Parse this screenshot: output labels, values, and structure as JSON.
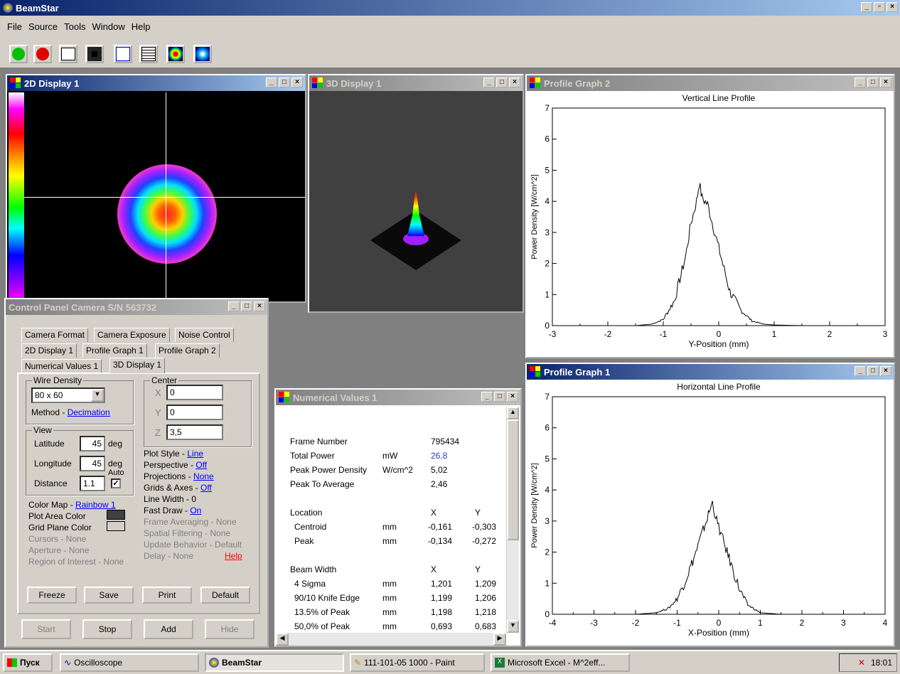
{
  "app": {
    "title": "BeamStar"
  },
  "menu": [
    "File",
    "Source",
    "Tools",
    "Window",
    "Help"
  ],
  "toolbar": {
    "icons": [
      "start-green-icon",
      "stop-red-icon",
      "profile-tool-icon",
      "2d-display-icon",
      "3d-display-icon",
      "numerical-values-icon",
      "color-map-icon",
      "beam-icon"
    ]
  },
  "win_2d": {
    "title": "2D Display 1"
  },
  "win_3d": {
    "title": "3D Display 1"
  },
  "win_pg2": {
    "title": "Profile Graph 2",
    "chart_title": "Vertical Line Profile",
    "xlabel": "Y-Position (mm)",
    "ylabel": "Power Density [W/cm^2]"
  },
  "win_pg1": {
    "title": "Profile Graph 1",
    "chart_title": "Horizontal Line Profile",
    "xlabel": "X-Position (mm)",
    "ylabel": "Power Density [W/cm^2]"
  },
  "chart_data": [
    {
      "type": "line",
      "title": "Vertical Line Profile",
      "xlabel": "Y-Position (mm)",
      "ylabel": "Power Density [W/cm^2]",
      "xlim": [
        -3,
        3
      ],
      "ylim": [
        0,
        7
      ],
      "xticks": [
        "-3",
        "-2",
        "-1",
        "0",
        "1",
        "2",
        "3"
      ],
      "yticks": [
        "0",
        "1",
        "2",
        "3",
        "4",
        "5",
        "6",
        "7"
      ],
      "x": [
        -2.4,
        -1.5,
        -1.2,
        -1.0,
        -0.8,
        -0.6,
        -0.5,
        -0.4,
        -0.35,
        -0.3,
        -0.2,
        -0.1,
        0.0,
        0.1,
        0.2,
        0.4,
        0.6,
        0.8,
        1.0,
        1.5,
        2.4
      ],
      "y": [
        0,
        0,
        0.05,
        0.2,
        0.8,
        2.2,
        3.3,
        4.0,
        4.6,
        4.1,
        3.9,
        3.2,
        2.5,
        1.8,
        1.1,
        0.5,
        0.15,
        0.05,
        0.02,
        0,
        0
      ]
    },
    {
      "type": "line",
      "title": "Horizontal Line Profile",
      "xlabel": "X-Position (mm)",
      "ylabel": "Power Density [W/cm^2]",
      "xlim": [
        -4,
        4
      ],
      "ylim": [
        0,
        7
      ],
      "xticks": [
        "-4",
        "-3",
        "-2",
        "-1",
        "0",
        "1",
        "2",
        "3",
        "4"
      ],
      "yticks": [
        "0",
        "1",
        "2",
        "3",
        "4",
        "5",
        "6",
        "7"
      ],
      "x": [
        -3.3,
        -2.0,
        -1.5,
        -1.2,
        -1.0,
        -0.8,
        -0.6,
        -0.4,
        -0.25,
        -0.15,
        -0.05,
        0.1,
        0.3,
        0.5,
        0.7,
        1.0,
        1.5,
        3.2
      ],
      "y": [
        0,
        0,
        0.05,
        0.2,
        0.5,
        1.1,
        1.8,
        2.6,
        3.2,
        3.6,
        3.0,
        2.4,
        1.6,
        0.8,
        0.3,
        0.05,
        0,
        0
      ]
    }
  ],
  "control": {
    "title": "Control Panel Camera S/N 563732",
    "tabs_row1": [
      "Camera Format",
      "Camera Exposure",
      "Noise Control"
    ],
    "tabs_row2": [
      "2D Display 1",
      "Profile Graph 1",
      "Profile Graph 2"
    ],
    "tabs_row3": [
      "Numerical Values 1",
      "3D Display 1"
    ],
    "wire_density": {
      "label": "Wire Density",
      "value": "80 x 60",
      "method_label": "Method - ",
      "method": "Decimation"
    },
    "center": {
      "label": "Center",
      "x_label": "X",
      "x": "0",
      "y_label": "Y",
      "y": "0",
      "z_label": "Z",
      "z": "3,5"
    },
    "view": {
      "label": "View",
      "lat_label": "Latitude",
      "lat": "45",
      "lon_label": "Longitude",
      "lon": "45",
      "deg": "deg",
      "dist_label": "Distance",
      "dist": "1.1",
      "auto": "Auto"
    },
    "plot_style": {
      "label": "Plot Style - ",
      "value": "Line"
    },
    "perspective": {
      "label": "Perspective - ",
      "value": "Off"
    },
    "projections": {
      "label": "Projections - ",
      "value": "None"
    },
    "grids": {
      "label": "Grids & Axes - ",
      "value": "Off"
    },
    "line_width": "Line Width - 0",
    "fast_draw": {
      "label": "Fast Draw - ",
      "value": "On"
    },
    "frame_avg": "Frame Averaging - None",
    "spatial": "Spatial Filtering - None",
    "update": "Update Behavior - Default",
    "delay": "Delay - None",
    "help": "Help",
    "color_map": {
      "label": "Color Map - ",
      "value": "Rainbow 1"
    },
    "plot_area_color": "Plot Area Color",
    "grid_plane_color": "Grid Plane Color",
    "cursors": "Cursors - None",
    "aperture": "Aperture - None",
    "roi": "Region of Interest - None",
    "buttons": [
      "Freeze",
      "Save",
      "Print",
      "Default"
    ],
    "bottom_buttons": [
      "Start",
      "Stop",
      "Add",
      "Hide"
    ]
  },
  "numerical": {
    "title": "Numerical Values 1",
    "rows": [
      {
        "label": "Frame Number",
        "unit": "",
        "v1": "795434",
        "v2": ""
      },
      {
        "label": "Total Power",
        "unit": "mW",
        "v1": "26,8",
        "v2": ""
      },
      {
        "label": "Peak Power Density",
        "unit": "W/cm^2",
        "v1": "5,02",
        "v2": ""
      },
      {
        "label": "Peak To Average",
        "unit": "",
        "v1": "2,46",
        "v2": ""
      }
    ],
    "location": {
      "label": "Location",
      "x": "X",
      "y": "Y",
      "rows": [
        {
          "label": "Centroid",
          "unit": "mm",
          "x": "-0,161",
          "y": "-0,303"
        },
        {
          "label": "Peak",
          "unit": "mm",
          "x": "-0,134",
          "y": "-0,272"
        }
      ]
    },
    "beam_width": {
      "label": "Beam Width",
      "x": "X",
      "y": "Y",
      "rows": [
        {
          "label": "4 Sigma",
          "unit": "mm",
          "x": "1,201",
          "y": "1,209"
        },
        {
          "label": "90/10 Knife Edge",
          "unit": "mm",
          "x": "1,199",
          "y": "1,206"
        },
        {
          "label": "13.5% of Peak",
          "unit": "mm",
          "x": "1,198",
          "y": "1,218"
        },
        {
          "label": "50,0% of Peak",
          "unit": "mm",
          "x": "0,693",
          "y": "0,683"
        }
      ]
    }
  },
  "taskbar": {
    "start": "Пуск",
    "items": [
      "Oscilloscope",
      "BeamStar",
      "111-101-05 1000 - Paint",
      "Microsoft Excel - M^2eff..."
    ],
    "clock": "18:01"
  },
  "colors": {
    "title_active": "#0a246a",
    "link": "#0000ff",
    "total_power": "#3333cc",
    "help": "#ff0000"
  }
}
